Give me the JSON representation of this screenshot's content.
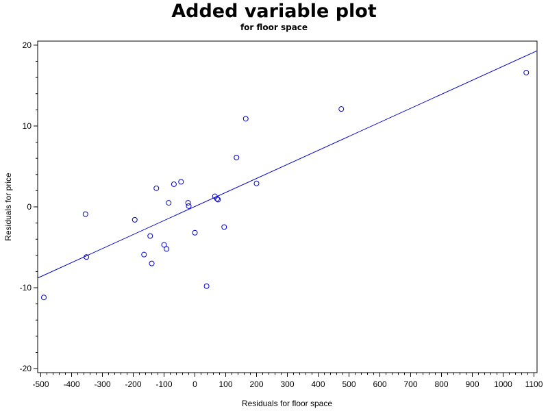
{
  "chart_data": {
    "type": "scatter",
    "title": "Added variable plot",
    "subtitle": "for floor space",
    "xlabel": "Residuals for floor space",
    "ylabel": "Residuals for price",
    "xlim": [
      -510,
      1110
    ],
    "ylim": [
      -20.5,
      20.5
    ],
    "xticks": [
      -500,
      -400,
      -300,
      -200,
      -100,
      0,
      100,
      200,
      300,
      400,
      500,
      600,
      700,
      800,
      900,
      1000,
      1100
    ],
    "yticks": [
      -20,
      -10,
      0,
      10,
      20
    ],
    "grid": false,
    "legend": "none",
    "marker_color": "#0000cc",
    "line_color": "#0000cc",
    "fit_line": {
      "x": [
        -510,
        1110
      ],
      "y": [
        -8.8,
        19.3
      ]
    },
    "series": [
      {
        "x": [
          -490,
          -355,
          -352,
          -195,
          -165,
          -145,
          -140,
          -125,
          -100,
          -92,
          -85,
          -68,
          -45,
          -22,
          -20,
          0,
          38,
          65,
          72,
          75,
          95,
          135,
          165,
          200,
          475,
          1075
        ],
        "y": [
          -11.2,
          -0.9,
          -6.2,
          -1.6,
          -5.9,
          -3.6,
          -7.0,
          2.3,
          -4.7,
          -5.2,
          0.5,
          2.8,
          3.1,
          0.5,
          0.1,
          -3.2,
          -9.8,
          1.3,
          1.0,
          0.9,
          -2.5,
          6.1,
          10.9,
          2.9,
          12.1,
          16.6
        ]
      }
    ]
  }
}
